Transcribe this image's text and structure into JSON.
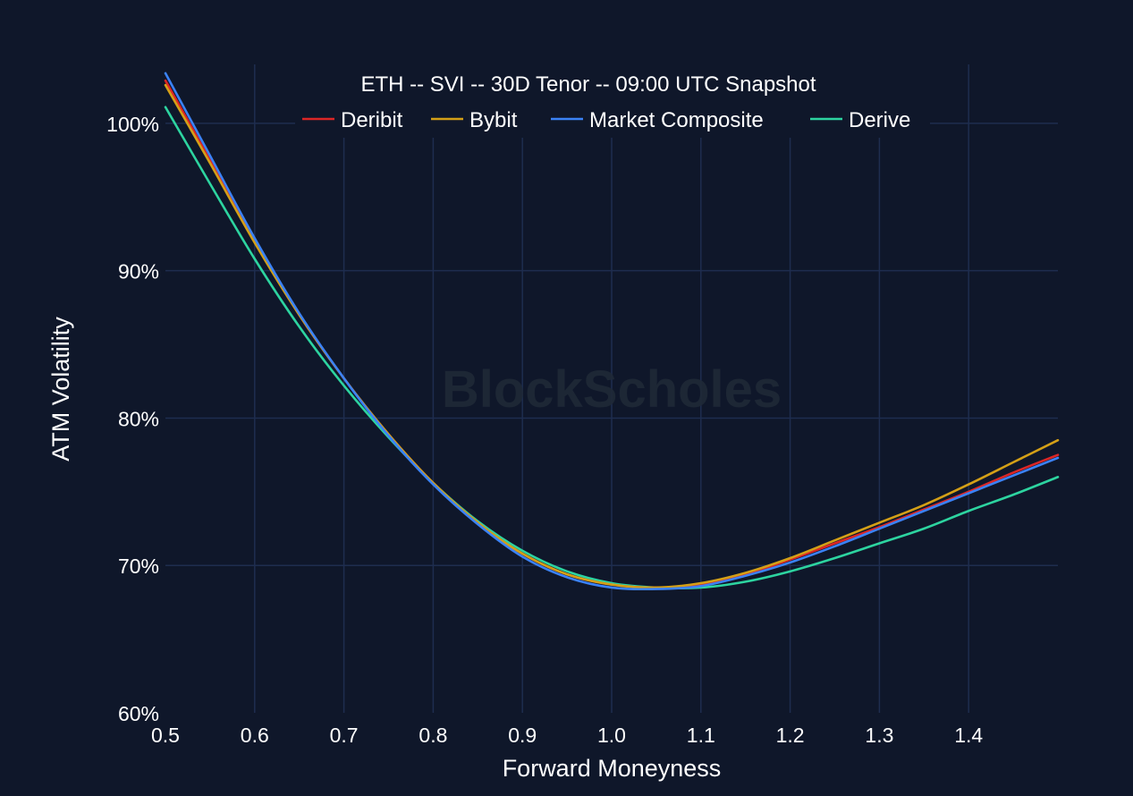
{
  "chart_data": {
    "type": "line",
    "title": "ETH -- SVI -- 30D Tenor -- 09:00 UTC Snapshot",
    "xlabel": "Forward Moneyness",
    "ylabel": "ATM Volatility",
    "watermark": "BlockScholes",
    "xlim": [
      0.5,
      1.5
    ],
    "ylim": [
      60,
      100
    ],
    "x_ticks": [
      0.5,
      0.6,
      0.7,
      0.8,
      0.9,
      1.0,
      1.1,
      1.2,
      1.3,
      1.4
    ],
    "x_tick_labels": [
      "0.5",
      "0.6",
      "0.7",
      "0.8",
      "0.9",
      "1.0",
      "1.1",
      "1.2",
      "1.3",
      "1.4"
    ],
    "y_ticks": [
      60,
      70,
      80,
      90,
      100
    ],
    "y_tick_labels": [
      "60%",
      "70%",
      "80%",
      "90%",
      "100%"
    ],
    "grid": true,
    "legend_position": "top-center",
    "x": [
      0.5,
      0.55,
      0.6,
      0.65,
      0.7,
      0.75,
      0.8,
      0.85,
      0.9,
      0.95,
      1.0,
      1.05,
      1.1,
      1.15,
      1.2,
      1.25,
      1.3,
      1.35,
      1.4,
      1.45,
      1.5
    ],
    "series": [
      {
        "name": "Deribit",
        "color": "#dc2626",
        "values": [
          102.9,
          97.5,
          92.0,
          87.0,
          82.7,
          78.9,
          75.6,
          72.9,
          70.8,
          69.4,
          68.7,
          68.5,
          68.7,
          69.4,
          70.4,
          71.5,
          72.6,
          73.8,
          75.0,
          76.3,
          77.5
        ]
      },
      {
        "name": "Bybit",
        "color": "#d4a017",
        "values": [
          102.6,
          97.3,
          91.9,
          87.0,
          82.7,
          78.9,
          75.6,
          72.9,
          70.8,
          69.4,
          68.7,
          68.5,
          68.8,
          69.5,
          70.5,
          71.7,
          72.9,
          74.1,
          75.5,
          77.0,
          78.5
        ]
      },
      {
        "name": "Market Composite",
        "color": "#3b82f6",
        "values": [
          103.4,
          97.8,
          92.2,
          87.1,
          82.7,
          78.8,
          75.5,
          72.8,
          70.6,
          69.2,
          68.5,
          68.4,
          68.6,
          69.3,
          70.2,
          71.3,
          72.5,
          73.7,
          74.9,
          76.1,
          77.3
        ]
      },
      {
        "name": "Derive",
        "color": "#2dd4a0",
        "values": [
          101.1,
          95.9,
          90.8,
          86.2,
          82.2,
          78.7,
          75.6,
          73.0,
          71.0,
          69.6,
          68.8,
          68.5,
          68.5,
          68.9,
          69.6,
          70.5,
          71.5,
          72.5,
          73.7,
          74.8,
          76.0
        ]
      }
    ]
  }
}
